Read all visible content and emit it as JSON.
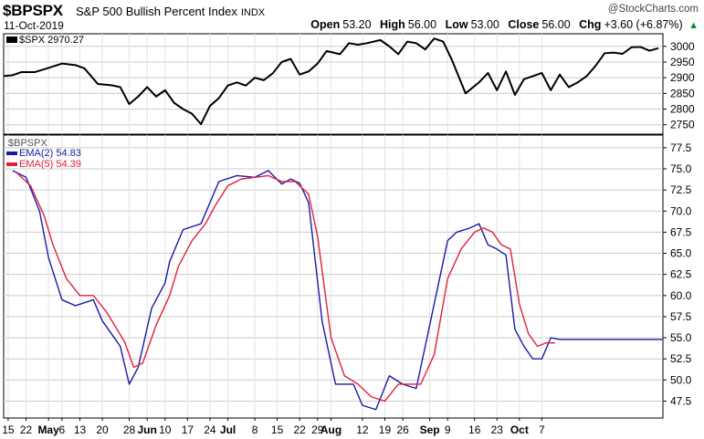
{
  "header": {
    "symbol": "$BPSPX",
    "name": "S&P 500 Bullish Percent Index",
    "exchange": "INDX",
    "date": "11-Oct-2019",
    "brand": "@StockCharts.com",
    "open_label": "Open",
    "open": "53.20",
    "high_label": "High",
    "high": "56.00",
    "low_label": "Low",
    "low": "53.00",
    "close_label": "Close",
    "close": "56.00",
    "chg_label": "Chg",
    "chg": "+3.60 (+6.87%)",
    "chg_arrow": "▲"
  },
  "chart_data": [
    {
      "type": "line",
      "panel": "top",
      "legend": "$SPX 2970.27",
      "ylim": [
        2720,
        3040
      ],
      "yticks": [
        2750,
        2800,
        2850,
        2900,
        2950,
        3000
      ],
      "grid": true,
      "series": [
        {
          "name": "$SPX",
          "color": "#000000",
          "x": [
            0,
            2,
            4,
            7,
            10,
            13,
            16,
            18,
            21,
            24,
            26,
            28,
            30,
            32,
            34,
            36,
            38,
            40,
            42,
            44,
            46,
            48,
            50,
            52,
            54,
            56,
            58,
            60,
            62,
            64,
            66,
            68,
            70,
            72,
            75,
            77,
            79,
            81,
            84,
            86,
            88,
            90,
            92,
            94,
            96,
            98,
            100,
            103,
            106,
            108,
            110,
            112,
            114,
            116,
            118,
            120,
            122,
            124,
            126,
            128,
            130,
            132,
            134,
            136,
            138,
            140,
            142,
            144,
            146
          ],
          "values": [
            2905,
            2908,
            2918,
            2918,
            2931,
            2945,
            2940,
            2930,
            2880,
            2876,
            2870,
            2816,
            2840,
            2870,
            2840,
            2860,
            2820,
            2800,
            2785,
            2752,
            2810,
            2835,
            2875,
            2885,
            2875,
            2900,
            2892,
            2914,
            2950,
            2960,
            2910,
            2920,
            2945,
            2985,
            2975,
            3010,
            3005,
            3010,
            3020,
            3000,
            2975,
            3015,
            3010,
            2990,
            3025,
            3015,
            2955,
            2850,
            2885,
            2915,
            2860,
            2920,
            2845,
            2895,
            2905,
            2915,
            2860,
            2910,
            2870,
            2885,
            2905,
            2938,
            2978,
            2980,
            2976,
            2997,
            2998,
            2986,
            2994
          ]
        }
      ]
    },
    {
      "type": "line",
      "panel": "bottom",
      "title": "$BPSPX",
      "ylim": [
        45.5,
        79.0
      ],
      "yticks": [
        47.5,
        50.0,
        52.5,
        55.0,
        57.5,
        60.0,
        62.5,
        65.0,
        67.5,
        70.0,
        72.5,
        75.0,
        77.5
      ],
      "grid": true,
      "series": [
        {
          "name": "EMA(2) 54.83",
          "color": "#1a1aa6",
          "x": [
            2,
            5,
            8,
            10,
            13,
            16,
            20,
            22,
            26,
            28,
            30,
            33,
            36,
            37,
            40,
            44,
            46,
            48,
            52,
            56,
            59,
            62,
            64,
            66,
            68,
            71,
            74,
            78,
            80,
            83,
            86,
            89,
            92,
            94,
            98,
            99,
            101,
            104,
            106,
            108,
            110,
            112,
            114,
            116,
            118,
            120,
            122,
            124,
            126,
            130,
            134,
            136,
            138,
            140,
            142,
            144,
            145,
            147
          ],
          "values": [
            74.8,
            74.0,
            70.0,
            64.5,
            59.5,
            58.8,
            59.5,
            57.0,
            54.0,
            49.5,
            51.5,
            58.5,
            61.5,
            64.0,
            67.8,
            68.5,
            71.0,
            73.5,
            74.2,
            74.0,
            74.8,
            73.2,
            73.8,
            73.3,
            71.0,
            57.0,
            49.5,
            49.5,
            47.0,
            46.5,
            50.5,
            49.5,
            49.0,
            54.0,
            64.0,
            66.5,
            67.5,
            68.0,
            68.5,
            66.0,
            65.5,
            64.8,
            56.0,
            54.0,
            52.5,
            52.5,
            55.0,
            54.8,
            54.8,
            54.8,
            54.8,
            54.8,
            54.8,
            54.8,
            54.8,
            54.8,
            54.8,
            54.8
          ]
        },
        {
          "name": "EMA(5) 54.39",
          "color": "#e0203c",
          "x": [
            3,
            6,
            9,
            11,
            14,
            17,
            20,
            23,
            27,
            29,
            31,
            34,
            37,
            39,
            42,
            45,
            47,
            50,
            53,
            56,
            59,
            62,
            65,
            68,
            70,
            73,
            76,
            79,
            82,
            85,
            88,
            91,
            93,
            96,
            99,
            102,
            105,
            107,
            109,
            111,
            113,
            115,
            117,
            119,
            121,
            123
          ],
          "values": [
            74.5,
            73.0,
            69.5,
            66.0,
            62.0,
            60.0,
            60.0,
            58.0,
            54.5,
            51.5,
            52.0,
            56.5,
            60.0,
            63.5,
            66.5,
            68.5,
            70.5,
            73.0,
            73.8,
            74.0,
            74.2,
            73.5,
            73.5,
            72.0,
            67.0,
            55.0,
            50.5,
            49.5,
            48.0,
            47.5,
            49.5,
            49.5,
            49.5,
            53.0,
            62.0,
            65.5,
            67.5,
            68.0,
            67.5,
            66.0,
            65.5,
            59.0,
            55.5,
            54.0,
            54.4,
            54.4
          ]
        }
      ]
    }
  ],
  "x_axis": {
    "labels": [
      {
        "text": "15",
        "bold": false
      },
      {
        "text": "22",
        "bold": false
      },
      {
        "text": "May",
        "bold": true
      },
      {
        "text": "6",
        "bold": false
      },
      {
        "text": "13",
        "bold": false
      },
      {
        "text": "20",
        "bold": false
      },
      {
        "text": "28",
        "bold": false
      },
      {
        "text": "Jun",
        "bold": true
      },
      {
        "text": "10",
        "bold": false
      },
      {
        "text": "17",
        "bold": false
      },
      {
        "text": "24",
        "bold": false
      },
      {
        "text": "Jul",
        "bold": true
      },
      {
        "text": "8",
        "bold": false
      },
      {
        "text": "15",
        "bold": false
      },
      {
        "text": "22",
        "bold": false
      },
      {
        "text": "29",
        "bold": false
      },
      {
        "text": "Aug",
        "bold": true
      },
      {
        "text": "12",
        "bold": false
      },
      {
        "text": "19",
        "bold": false
      },
      {
        "text": "26",
        "bold": false
      },
      {
        "text": "Sep",
        "bold": true
      },
      {
        "text": "9",
        "bold": false
      },
      {
        "text": "16",
        "bold": false
      },
      {
        "text": "23",
        "bold": false
      },
      {
        "text": "Oct",
        "bold": true
      },
      {
        "text": "7",
        "bold": false
      }
    ],
    "positions": [
      1,
      5,
      10,
      13,
      17,
      22,
      28,
      32,
      36,
      41,
      46,
      50,
      56,
      61,
      66,
      70,
      73,
      80,
      85,
      89,
      95,
      99,
      105,
      110,
      115,
      120
    ]
  }
}
